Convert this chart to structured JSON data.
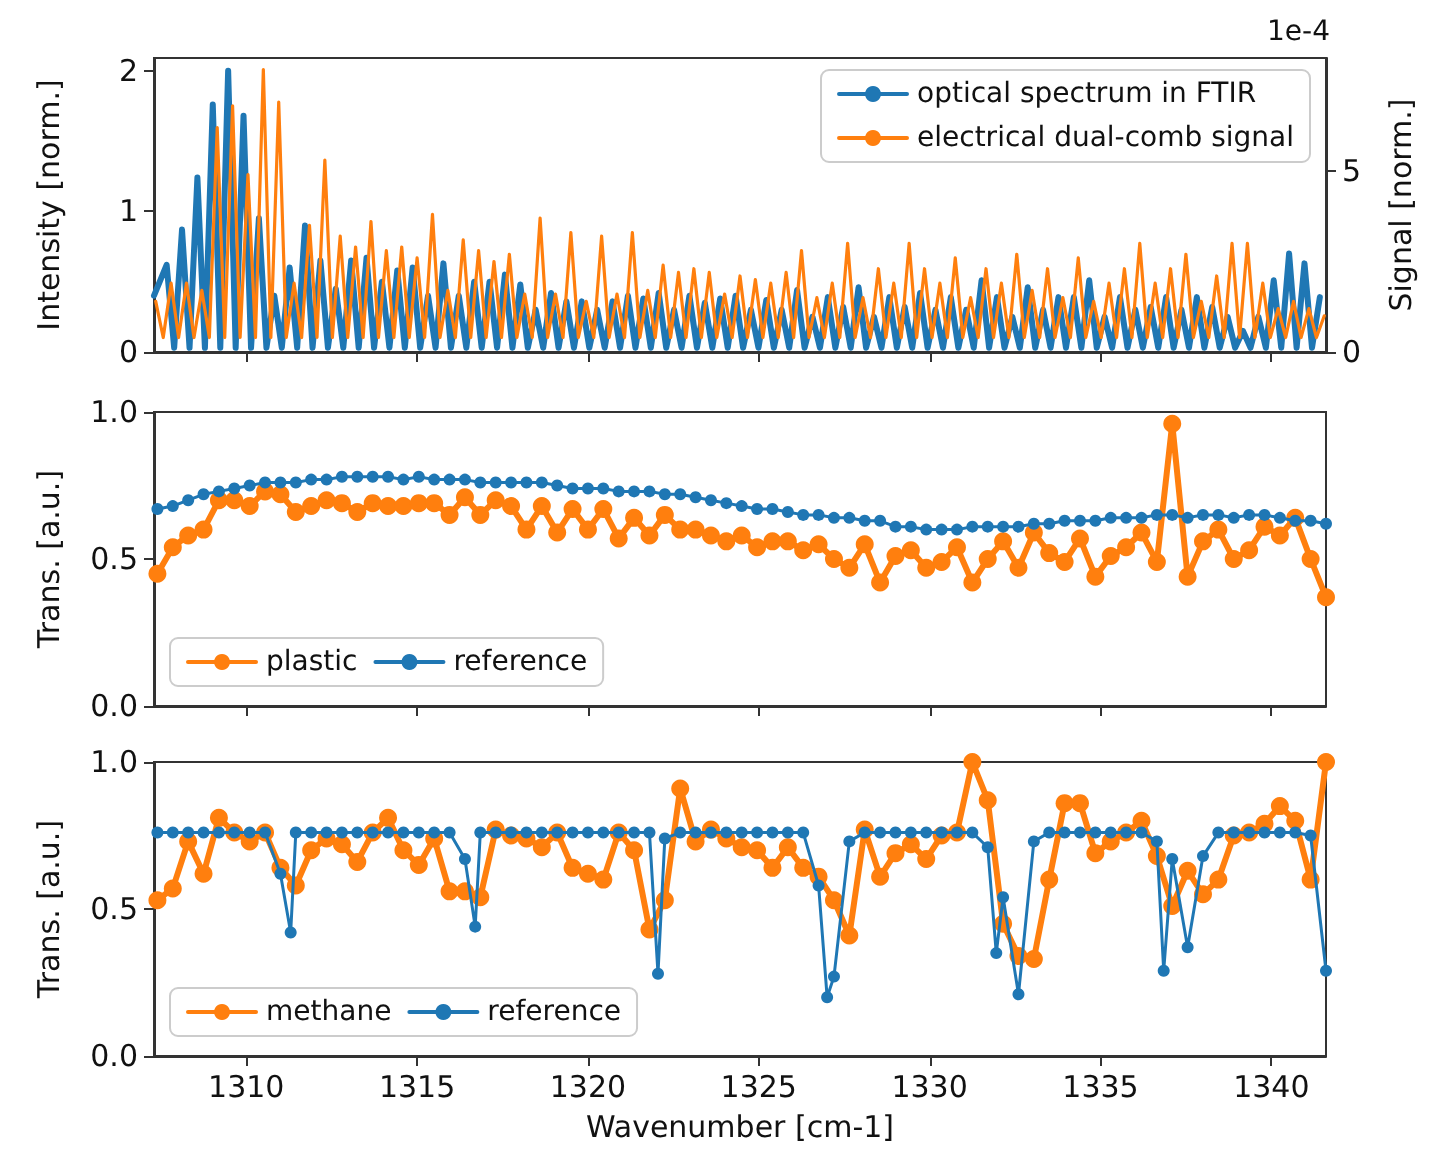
{
  "chart_data": [
    {
      "type": "line",
      "ylabel": "Intensity [norm.]",
      "y2label": "Signal [norm.]",
      "annotations": [
        "1e-4"
      ],
      "xlim": [
        1307.3,
        1341.6
      ],
      "xticks": [
        1310,
        1315,
        1320,
        1325,
        1330,
        1335,
        1340
      ],
      "ylim": [
        0,
        2.09
      ],
      "yticks": [
        0,
        1,
        2
      ],
      "y2lim": [
        0,
        8.12
      ],
      "y2ticks": [
        0,
        5
      ],
      "tick_labels": "y",
      "grid": false,
      "legend": "top right",
      "series": [
        {
          "name": "optical spectrum in FTIR",
          "color": "#1f77b4",
          "x": [
            1307.3,
            1307.67,
            1307.89,
            1308.12,
            1308.34,
            1308.57,
            1308.79,
            1309.02,
            1309.24,
            1309.47,
            1309.69,
            1309.92,
            1310.14,
            1310.37,
            1310.59,
            1310.82,
            1311.04,
            1311.27,
            1311.49,
            1311.72,
            1311.94,
            1312.17,
            1312.39,
            1312.62,
            1312.84,
            1313.07,
            1313.29,
            1313.52,
            1313.74,
            1313.97,
            1314.19,
            1314.42,
            1314.64,
            1314.87,
            1315.09,
            1315.32,
            1315.54,
            1315.77,
            1315.99,
            1316.22,
            1316.44,
            1316.67,
            1316.89,
            1317.12,
            1317.34,
            1317.57,
            1317.79,
            1318.02,
            1318.24,
            1318.47,
            1318.69,
            1318.92,
            1319.14,
            1319.37,
            1319.59,
            1319.82,
            1320.04,
            1320.27,
            1320.49,
            1320.72,
            1320.94,
            1321.17,
            1321.39,
            1321.62,
            1321.84,
            1322.07,
            1322.29,
            1322.52,
            1322.74,
            1322.97,
            1323.19,
            1323.42,
            1323.64,
            1323.87,
            1324.09,
            1324.32,
            1324.54,
            1324.77,
            1324.99,
            1325.22,
            1325.44,
            1325.67,
            1325.89,
            1326.12,
            1326.34,
            1326.57,
            1326.79,
            1327.02,
            1327.24,
            1327.47,
            1327.69,
            1327.92,
            1328.14,
            1328.37,
            1328.59,
            1328.82,
            1329.04,
            1329.27,
            1329.49,
            1329.72,
            1329.94,
            1330.17,
            1330.39,
            1330.62,
            1330.84,
            1331.07,
            1331.29,
            1331.52,
            1331.74,
            1331.97,
            1332.19,
            1332.42,
            1332.64,
            1332.87,
            1333.09,
            1333.32,
            1333.54,
            1333.77,
            1333.99,
            1334.22,
            1334.44,
            1334.67,
            1334.89,
            1335.12,
            1335.34,
            1335.57,
            1335.79,
            1336.02,
            1336.24,
            1336.47,
            1336.69,
            1336.92,
            1337.14,
            1337.37,
            1337.59,
            1337.82,
            1338.04,
            1338.27,
            1338.49,
            1338.72,
            1338.94,
            1339.17,
            1339.39,
            1339.62,
            1339.84,
            1340.07,
            1340.29,
            1340.52,
            1340.74,
            1340.97,
            1341.19,
            1341.42
          ],
          "values": [
            0.4,
            0.62,
            0.03,
            0.87,
            0.03,
            1.24,
            0.03,
            1.76,
            0.03,
            2.0,
            0.03,
            1.68,
            0.03,
            0.95,
            0.03,
            0.4,
            0.03,
            0.6,
            0.03,
            0.9,
            0.03,
            0.65,
            0.03,
            0.45,
            0.03,
            0.65,
            0.03,
            0.67,
            0.03,
            0.5,
            0.03,
            0.58,
            0.03,
            0.6,
            0.03,
            0.4,
            0.03,
            0.63,
            0.03,
            0.4,
            0.03,
            0.5,
            0.03,
            0.5,
            0.03,
            0.55,
            0.03,
            0.48,
            0.03,
            0.3,
            0.03,
            0.42,
            0.03,
            0.36,
            0.03,
            0.36,
            0.03,
            0.3,
            0.03,
            0.36,
            0.03,
            0.4,
            0.03,
            0.38,
            0.03,
            0.42,
            0.03,
            0.3,
            0.03,
            0.4,
            0.03,
            0.35,
            0.03,
            0.38,
            0.03,
            0.4,
            0.03,
            0.3,
            0.03,
            0.37,
            0.03,
            0.3,
            0.03,
            0.44,
            0.03,
            0.25,
            0.03,
            0.39,
            0.03,
            0.32,
            0.03,
            0.46,
            0.03,
            0.25,
            0.03,
            0.39,
            0.03,
            0.32,
            0.03,
            0.42,
            0.03,
            0.3,
            0.03,
            0.39,
            0.03,
            0.3,
            0.03,
            0.51,
            0.03,
            0.39,
            0.03,
            0.25,
            0.03,
            0.46,
            0.03,
            0.3,
            0.03,
            0.39,
            0.03,
            0.39,
            0.03,
            0.51,
            0.03,
            0.25,
            0.03,
            0.39,
            0.03,
            0.3,
            0.03,
            0.32,
            0.03,
            0.39,
            0.03,
            0.3,
            0.03,
            0.39,
            0.03,
            0.32,
            0.03,
            0.25,
            0.03,
            0.15,
            0.03,
            0.25,
            0.03,
            0.51,
            0.03,
            0.7,
            0.03,
            0.63,
            0.03,
            0.39
          ]
        },
        {
          "name": "electrical dual-comb signal",
          "color": "#ff7f0e",
          "axis": "y2",
          "x": [
            1307.35,
            1307.57,
            1307.8,
            1308.02,
            1308.25,
            1308.47,
            1308.7,
            1308.92,
            1309.15,
            1309.37,
            1309.6,
            1309.82,
            1310.05,
            1310.27,
            1310.5,
            1310.72,
            1310.95,
            1311.17,
            1311.4,
            1311.62,
            1311.85,
            1312.07,
            1312.3,
            1312.52,
            1312.75,
            1312.97,
            1313.2,
            1313.42,
            1313.65,
            1313.87,
            1314.1,
            1314.32,
            1314.55,
            1314.77,
            1315.0,
            1315.22,
            1315.45,
            1315.67,
            1315.9,
            1316.12,
            1316.35,
            1316.57,
            1316.8,
            1317.02,
            1317.25,
            1317.47,
            1317.7,
            1317.92,
            1318.15,
            1318.37,
            1318.6,
            1318.82,
            1319.05,
            1319.27,
            1319.5,
            1319.72,
            1319.95,
            1320.17,
            1320.4,
            1320.62,
            1320.85,
            1321.07,
            1321.3,
            1321.52,
            1321.75,
            1321.97,
            1322.2,
            1322.42,
            1322.65,
            1322.87,
            1323.1,
            1323.32,
            1323.55,
            1323.77,
            1324.0,
            1324.22,
            1324.45,
            1324.67,
            1324.9,
            1325.12,
            1325.35,
            1325.57,
            1325.8,
            1326.02,
            1326.25,
            1326.47,
            1326.7,
            1326.92,
            1327.15,
            1327.37,
            1327.6,
            1327.82,
            1328.05,
            1328.27,
            1328.5,
            1328.72,
            1328.95,
            1329.17,
            1329.4,
            1329.62,
            1329.85,
            1330.07,
            1330.3,
            1330.52,
            1330.75,
            1330.97,
            1331.2,
            1331.42,
            1331.65,
            1331.87,
            1332.1,
            1332.32,
            1332.55,
            1332.77,
            1333.0,
            1333.22,
            1333.45,
            1333.67,
            1333.9,
            1334.12,
            1334.35,
            1334.57,
            1334.8,
            1335.02,
            1335.25,
            1335.47,
            1335.7,
            1335.92,
            1336.15,
            1336.37,
            1336.6,
            1336.82,
            1337.05,
            1337.27,
            1337.5,
            1337.72,
            1337.95,
            1338.17,
            1338.4,
            1338.62,
            1338.85,
            1339.07,
            1339.3,
            1339.52,
            1339.75,
            1339.97,
            1340.2,
            1340.42,
            1340.65,
            1340.87,
            1341.1,
            1341.32,
            1341.55
          ],
          "values": [
            1.4,
            0.4,
            1.9,
            0.4,
            1.9,
            0.4,
            1.7,
            0.4,
            6.2,
            0.4,
            6.8,
            0.4,
            4.9,
            0.4,
            7.8,
            0.4,
            6.9,
            0.4,
            1.9,
            0.4,
            3.5,
            0.4,
            5.3,
            0.4,
            3.2,
            0.4,
            2.9,
            0.4,
            3.6,
            0.4,
            2.8,
            0.4,
            2.9,
            0.4,
            2.6,
            0.4,
            3.8,
            0.4,
            1.7,
            0.4,
            3.1,
            0.4,
            2.8,
            0.4,
            2.5,
            0.4,
            2.7,
            0.4,
            1.6,
            0.4,
            3.7,
            0.4,
            1.6,
            0.4,
            3.3,
            0.4,
            1.4,
            0.4,
            3.2,
            0.4,
            1.6,
            0.4,
            3.3,
            0.4,
            1.7,
            0.4,
            2.4,
            0.4,
            2.2,
            0.4,
            2.3,
            0.4,
            2.2,
            0.4,
            1.6,
            0.4,
            2.1,
            0.4,
            2.0,
            0.4,
            1.9,
            0.4,
            2.2,
            0.4,
            2.8,
            0.4,
            1.5,
            0.4,
            1.9,
            0.4,
            3.0,
            0.4,
            1.5,
            0.4,
            2.3,
            0.4,
            1.9,
            0.4,
            3.0,
            0.4,
            2.3,
            0.4,
            1.9,
            0.4,
            2.6,
            0.4,
            1.5,
            0.4,
            2.3,
            0.4,
            1.9,
            0.4,
            2.7,
            0.4,
            1.7,
            0.4,
            2.3,
            0.4,
            1.5,
            0.4,
            2.6,
            0.4,
            1.4,
            0.4,
            1.9,
            0.4,
            2.3,
            0.4,
            3.0,
            0.4,
            1.9,
            0.4,
            2.3,
            0.4,
            2.7,
            0.4,
            1.4,
            0.4,
            2.1,
            0.4,
            3.0,
            0.4,
            3.0,
            0.4,
            1.9,
            0.4,
            1.2,
            0.4,
            1.4,
            0.4,
            1.2,
            0.4,
            1.0
          ]
        }
      ]
    },
    {
      "type": "line",
      "ylabel": "Trans. [a.u.]",
      "xlim": [
        1307.3,
        1341.6
      ],
      "xticks": [
        1310,
        1315,
        1320,
        1325,
        1330,
        1335,
        1340
      ],
      "ylim": [
        0,
        1
      ],
      "yticks": [
        {
          "value": 0,
          "label": "0.0"
        },
        {
          "value": 0.5,
          "label": "0.5"
        },
        {
          "value": 1,
          "label": "1.0"
        }
      ],
      "tick_labels": "y",
      "grid": false,
      "legend": "bottom left",
      "marker": "circle",
      "x": [
        1307.4,
        1307.85,
        1308.3,
        1308.75,
        1309.2,
        1309.65,
        1310.1,
        1310.55,
        1311.0,
        1311.45,
        1311.9,
        1312.35,
        1312.8,
        1313.25,
        1313.7,
        1314.15,
        1314.6,
        1315.05,
        1315.5,
        1315.95,
        1316.4,
        1316.85,
        1317.3,
        1317.75,
        1318.2,
        1318.65,
        1319.1,
        1319.55,
        1320.0,
        1320.45,
        1320.9,
        1321.35,
        1321.8,
        1322.25,
        1322.7,
        1323.15,
        1323.6,
        1324.05,
        1324.5,
        1324.95,
        1325.4,
        1325.85,
        1326.3,
        1326.75,
        1327.2,
        1327.65,
        1328.1,
        1328.55,
        1329.0,
        1329.45,
        1329.9,
        1330.35,
        1330.8,
        1331.25,
        1331.7,
        1332.15,
        1332.6,
        1333.05,
        1333.5,
        1333.95,
        1334.4,
        1334.85,
        1335.3,
        1335.75,
        1336.2,
        1336.65,
        1337.1,
        1337.55,
        1338.0,
        1338.45,
        1338.9,
        1339.35,
        1339.8,
        1340.25,
        1340.7,
        1341.15,
        1341.6
      ],
      "series": [
        {
          "name": "plastic",
          "color": "#ff7f0e",
          "values": [
            0.45,
            0.54,
            0.58,
            0.6,
            0.7,
            0.7,
            0.68,
            0.73,
            0.72,
            0.66,
            0.68,
            0.7,
            0.69,
            0.66,
            0.69,
            0.68,
            0.68,
            0.69,
            0.69,
            0.65,
            0.71,
            0.65,
            0.7,
            0.68,
            0.6,
            0.68,
            0.59,
            0.67,
            0.6,
            0.67,
            0.57,
            0.64,
            0.58,
            0.65,
            0.6,
            0.6,
            0.58,
            0.56,
            0.58,
            0.54,
            0.56,
            0.56,
            0.53,
            0.55,
            0.5,
            0.47,
            0.55,
            0.42,
            0.51,
            0.53,
            0.47,
            0.49,
            0.54,
            0.42,
            0.5,
            0.56,
            0.47,
            0.59,
            0.52,
            0.49,
            0.57,
            0.44,
            0.51,
            0.54,
            0.59,
            0.49,
            0.96,
            0.44,
            0.56,
            0.6,
            0.5,
            0.53,
            0.61,
            0.58,
            0.64,
            0.5,
            0.37
          ]
        },
        {
          "name": "reference",
          "color": "#1f77b4",
          "values": [
            0.67,
            0.68,
            0.7,
            0.72,
            0.73,
            0.74,
            0.75,
            0.76,
            0.76,
            0.76,
            0.77,
            0.77,
            0.78,
            0.78,
            0.78,
            0.78,
            0.77,
            0.78,
            0.77,
            0.77,
            0.77,
            0.76,
            0.76,
            0.76,
            0.76,
            0.76,
            0.75,
            0.74,
            0.74,
            0.74,
            0.73,
            0.73,
            0.73,
            0.72,
            0.72,
            0.71,
            0.7,
            0.69,
            0.68,
            0.67,
            0.67,
            0.66,
            0.65,
            0.65,
            0.64,
            0.64,
            0.63,
            0.63,
            0.61,
            0.61,
            0.6,
            0.6,
            0.6,
            0.61,
            0.61,
            0.61,
            0.61,
            0.62,
            0.62,
            0.63,
            0.63,
            0.63,
            0.64,
            0.64,
            0.64,
            0.65,
            0.65,
            0.64,
            0.65,
            0.65,
            0.64,
            0.65,
            0.65,
            0.64,
            0.63,
            0.63,
            0.62
          ]
        }
      ]
    },
    {
      "type": "line",
      "xlabel": "Wavenumber [cm-1]",
      "ylabel": "Trans. [a.u.]",
      "xlim": [
        1307.3,
        1341.6
      ],
      "xticks": [
        1310,
        1315,
        1320,
        1325,
        1330,
        1335,
        1340
      ],
      "ylim": [
        0,
        1
      ],
      "yticks": [
        {
          "value": 0,
          "label": "0.0"
        },
        {
          "value": 0.5,
          "label": "0.5"
        },
        {
          "value": 1,
          "label": "1.0"
        }
      ],
      "grid": false,
      "legend": "bottom left",
      "marker": "circle",
      "x": [
        1307.4,
        1307.85,
        1308.3,
        1308.75,
        1309.2,
        1309.65,
        1310.1,
        1310.55,
        1311.0,
        1311.45,
        1311.9,
        1312.35,
        1312.8,
        1313.25,
        1313.7,
        1314.15,
        1314.6,
        1315.05,
        1315.5,
        1315.95,
        1316.4,
        1316.85,
        1317.3,
        1317.75,
        1318.2,
        1318.65,
        1319.1,
        1319.55,
        1320.0,
        1320.45,
        1320.9,
        1321.35,
        1321.8,
        1322.25,
        1322.7,
        1323.15,
        1323.6,
        1324.05,
        1324.5,
        1324.95,
        1325.4,
        1325.85,
        1326.3,
        1326.75,
        1327.2,
        1327.65,
        1328.1,
        1328.55,
        1329.0,
        1329.45,
        1329.9,
        1330.35,
        1330.8,
        1331.25,
        1331.7,
        1332.15,
        1332.6,
        1333.05,
        1333.5,
        1333.95,
        1334.4,
        1334.85,
        1335.3,
        1335.75,
        1336.2,
        1336.65,
        1337.1,
        1337.55,
        1338.0,
        1338.45,
        1338.9,
        1339.35,
        1339.8,
        1340.25,
        1340.7,
        1341.15,
        1341.6
      ],
      "series": [
        {
          "name": "methane",
          "color": "#ff7f0e",
          "values": [
            0.53,
            0.57,
            0.73,
            0.62,
            0.81,
            0.76,
            0.73,
            0.76,
            0.64,
            0.58,
            0.7,
            0.74,
            0.72,
            0.66,
            0.76,
            0.81,
            0.7,
            0.65,
            0.74,
            0.56,
            0.56,
            0.54,
            0.77,
            0.75,
            0.74,
            0.71,
            0.76,
            0.64,
            0.62,
            0.6,
            0.76,
            0.7,
            0.43,
            0.53,
            0.91,
            0.73,
            0.77,
            0.74,
            0.71,
            0.7,
            0.64,
            0.71,
            0.64,
            0.61,
            0.53,
            0.41,
            0.77,
            0.61,
            0.69,
            0.72,
            0.67,
            0.75,
            0.76,
            1.0,
            0.87,
            0.45,
            0.34,
            0.33,
            0.6,
            0.86,
            0.86,
            0.69,
            0.73,
            0.76,
            0.8,
            0.68,
            0.51,
            0.63,
            0.55,
            0.6,
            0.75,
            0.76,
            0.79,
            0.85,
            0.8,
            0.6,
            1.0
          ]
        },
        {
          "name": "reference",
          "color": "#1f77b4",
          "x": [
            1307.4,
            1307.85,
            1308.3,
            1308.75,
            1309.2,
            1309.65,
            1310.1,
            1310.55,
            1311.0,
            1311.3,
            1311.45,
            1311.9,
            1312.35,
            1312.8,
            1313.25,
            1313.7,
            1314.15,
            1314.6,
            1315.05,
            1315.5,
            1315.95,
            1316.4,
            1316.7,
            1316.85,
            1317.3,
            1317.75,
            1318.2,
            1318.65,
            1319.1,
            1319.55,
            1320.0,
            1320.45,
            1320.9,
            1321.35,
            1321.8,
            1322.05,
            1322.25,
            1322.7,
            1323.15,
            1323.6,
            1324.05,
            1324.5,
            1324.95,
            1325.4,
            1325.85,
            1326.3,
            1326.75,
            1327.0,
            1327.2,
            1327.65,
            1328.1,
            1328.55,
            1329.0,
            1329.45,
            1329.9,
            1330.35,
            1330.8,
            1331.25,
            1331.7,
            1331.95,
            1332.15,
            1332.6,
            1333.05,
            1333.5,
            1333.95,
            1334.4,
            1334.85,
            1335.3,
            1335.75,
            1336.2,
            1336.65,
            1336.85,
            1337.1,
            1337.55,
            1338.0,
            1338.45,
            1338.9,
            1339.35,
            1339.8,
            1340.25,
            1340.7,
            1341.15,
            1341.6
          ],
          "values": [
            0.76,
            0.76,
            0.76,
            0.76,
            0.76,
            0.76,
            0.76,
            0.76,
            0.62,
            0.42,
            0.76,
            0.76,
            0.76,
            0.76,
            0.76,
            0.76,
            0.76,
            0.76,
            0.76,
            0.76,
            0.76,
            0.67,
            0.44,
            0.76,
            0.76,
            0.76,
            0.76,
            0.76,
            0.76,
            0.76,
            0.76,
            0.76,
            0.76,
            0.76,
            0.76,
            0.28,
            0.74,
            0.76,
            0.76,
            0.76,
            0.76,
            0.76,
            0.76,
            0.76,
            0.76,
            0.76,
            0.58,
            0.2,
            0.27,
            0.73,
            0.76,
            0.76,
            0.76,
            0.76,
            0.76,
            0.76,
            0.76,
            0.76,
            0.71,
            0.35,
            0.54,
            0.21,
            0.73,
            0.76,
            0.76,
            0.76,
            0.76,
            0.76,
            0.76,
            0.76,
            0.73,
            0.29,
            0.67,
            0.37,
            0.68,
            0.76,
            0.76,
            0.76,
            0.76,
            0.76,
            0.76,
            0.75,
            0.29
          ]
        }
      ]
    }
  ]
}
